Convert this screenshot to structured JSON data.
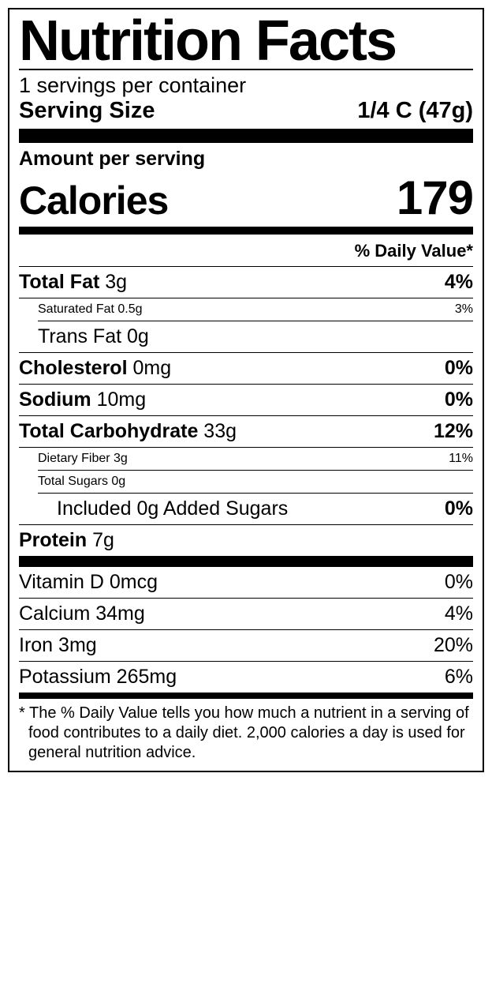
{
  "title": "Nutrition Facts",
  "servings_per_container": "1 servings per container",
  "serving_size_label": "Serving Size",
  "serving_size_value": "1/4 C (47g)",
  "amount_per_serving": "Amount per serving",
  "calories_label": "Calories",
  "calories_value": "179",
  "dv_header": "% Daily Value*",
  "nutrients": {
    "total_fat": {
      "label": "Total Fat",
      "amount": "3g",
      "pct": "4%"
    },
    "sat_fat": {
      "label": "Saturated Fat",
      "amount": "0.5g",
      "pct": "3%"
    },
    "trans_fat": {
      "label": "Trans Fat",
      "amount": "0g"
    },
    "cholesterol": {
      "label": "Cholesterol",
      "amount": "0mg",
      "pct": "0%"
    },
    "sodium": {
      "label": "Sodium",
      "amount": "10mg",
      "pct": "0%"
    },
    "total_carb": {
      "label": "Total Carbohydrate",
      "amount": "33g",
      "pct": "12%"
    },
    "fiber": {
      "label": "Dietary Fiber",
      "amount": "3g",
      "pct": "11%"
    },
    "total_sugars": {
      "label": "Total Sugars",
      "amount": "0g"
    },
    "added_sugars": {
      "text": "Included 0g Added Sugars",
      "pct": "0%"
    },
    "protein": {
      "label": "Protein",
      "amount": "7g"
    }
  },
  "vitamins": {
    "vitd": {
      "label": "Vitamin D",
      "amount": "0mcg",
      "pct": "0%"
    },
    "calcium": {
      "label": "Calcium",
      "amount": "34mg",
      "pct": "4%"
    },
    "iron": {
      "label": "Iron",
      "amount": "3mg",
      "pct": "20%"
    },
    "potassium": {
      "label": "Potassium",
      "amount": "265mg",
      "pct": "6%"
    }
  },
  "footnote": "* The % Daily Value tells you how much a nutrient in a serving of food contributes to a daily diet. 2,000 calories a day is used for general nutrition advice."
}
